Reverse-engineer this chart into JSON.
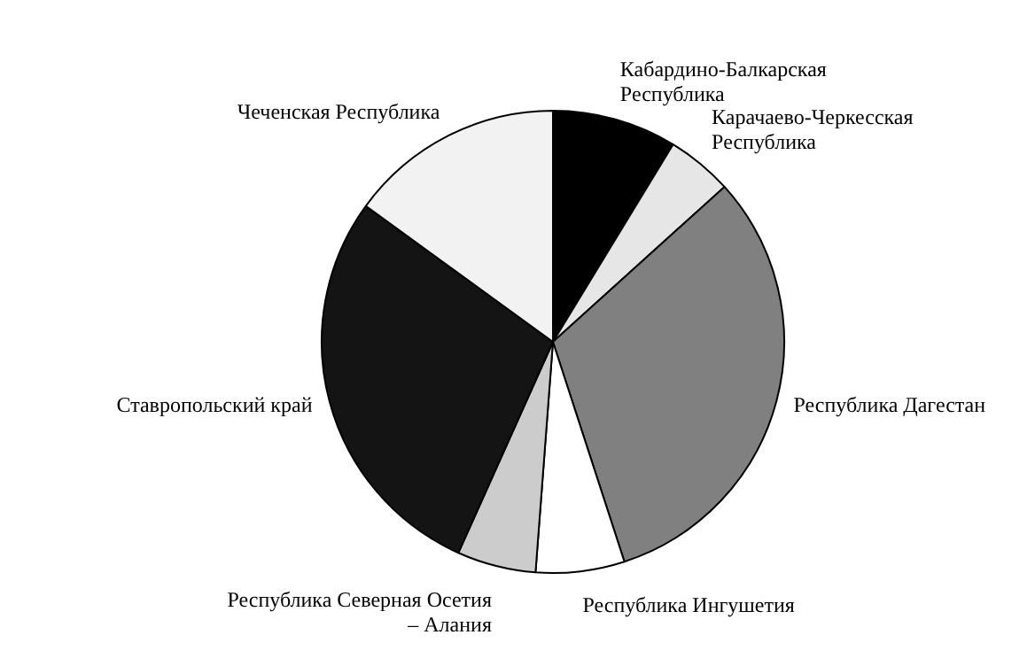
{
  "chart_data": {
    "type": "pie",
    "categories": [
      "Кабардино-Балкарская Республика",
      "Карачаево-Черкесская Республика",
      "Республика Дагестан",
      "Республика Ингушетия",
      "Республика Северная Осетия – Алания",
      "Ставропольский край",
      "Чеченская Республика"
    ],
    "values": [
      8.7,
      4.6,
      31.7,
      6.2,
      5.5,
      28.3,
      15.0
    ],
    "colors": [
      "#000000",
      "#e6e6e6",
      "#808080",
      "#ffffff",
      "#cccccc",
      "#141414",
      "#f2f2f2"
    ],
    "legend": false
  }
}
